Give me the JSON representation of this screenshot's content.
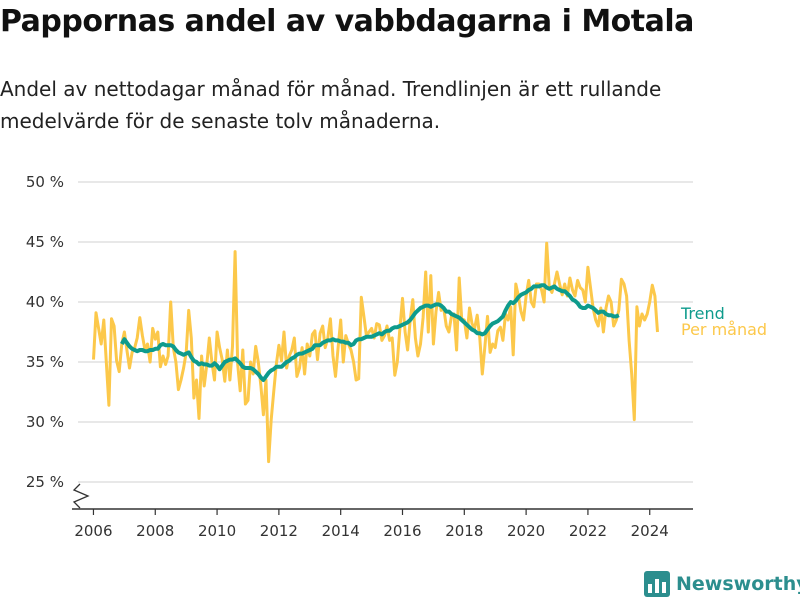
{
  "title": "Pappornas andel av vabbdagarna i Motala",
  "subtitle": "Andel av nettodagar månad för månad. Trendlinjen är ett rullande medelvärde för de senaste tolv månaderna.",
  "brand": {
    "name": "Newsworthy",
    "logo_icon": "newsworthy-logo-icon"
  },
  "colors": {
    "trend": "#0e9b8c",
    "monthly": "#fcc84a",
    "grid": "#d9d9d9",
    "axis": "#333333"
  },
  "chart_data": {
    "type": "line",
    "xlim": [
      2005.5,
      2025.4
    ],
    "ylim": [
      25,
      50
    ],
    "y_break_at_bottom": true,
    "grid": "horizontal",
    "x_ticks": [
      {
        "value": 2006,
        "label": "2006"
      },
      {
        "value": 2008,
        "label": "2008"
      },
      {
        "value": 2010,
        "label": "2010"
      },
      {
        "value": 2012,
        "label": "2012"
      },
      {
        "value": 2014,
        "label": "2014"
      },
      {
        "value": 2016,
        "label": "2016"
      },
      {
        "value": 2018,
        "label": "2018"
      },
      {
        "value": 2020,
        "label": "2020"
      },
      {
        "value": 2022,
        "label": "2022"
      },
      {
        "value": 2024,
        "label": "2024"
      }
    ],
    "y_ticks": [
      {
        "value": 25,
        "label": "25 %"
      },
      {
        "value": 30,
        "label": "30 %"
      },
      {
        "value": 35,
        "label": "35 %"
      },
      {
        "value": 40,
        "label": "40 %"
      },
      {
        "value": 45,
        "label": "45 %"
      },
      {
        "value": 50,
        "label": "50 %"
      }
    ],
    "series": [
      {
        "name": "Per månad",
        "color": "#fcc84a",
        "start": "2006-01",
        "values": [
          35.2,
          39.1,
          37.8,
          36.5,
          38.5,
          35.0,
          31.4,
          38.6,
          38.0,
          35.1,
          34.2,
          36.5,
          37.5,
          36.0,
          34.5,
          35.8,
          36.2,
          37.0,
          38.7,
          37.2,
          36.0,
          36.5,
          35.0,
          37.8,
          36.9,
          37.5,
          34.6,
          35.5,
          34.8,
          35.5,
          40.0,
          36.2,
          35.0,
          32.7,
          33.5,
          34.5,
          35.8,
          39.3,
          37.0,
          32.0,
          33.5,
          30.3,
          35.5,
          33.0,
          34.8,
          37.0,
          35.0,
          33.5,
          37.5,
          36.2,
          35.2,
          33.4,
          36.0,
          33.5,
          36.3,
          44.2,
          34.8,
          32.6,
          36.0,
          31.5,
          31.8,
          35.0,
          34.0,
          36.3,
          35.0,
          33.0,
          30.6,
          33.5,
          26.7,
          30.2,
          32.5,
          34.8,
          36.4,
          35.1,
          37.5,
          34.5,
          35.5,
          36.0,
          37.0,
          33.8,
          34.5,
          36.2,
          34.0,
          36.5,
          35.5,
          37.3,
          37.6,
          35.2,
          37.4,
          38.0,
          36.2,
          37.0,
          38.6,
          35.5,
          33.8,
          36.2,
          38.5,
          35.0,
          37.2,
          36.5,
          36.0,
          35.0,
          33.5,
          33.6,
          40.4,
          38.8,
          37.2,
          37.5,
          37.8,
          37.0,
          38.2,
          38.1,
          36.8,
          37.2,
          38.0,
          36.8,
          37.0,
          33.9,
          35.0,
          37.8,
          40.3,
          37.5,
          36.0,
          38.5,
          40.2,
          37.0,
          35.5,
          36.5,
          38.7,
          42.5,
          37.5,
          42.2,
          36.5,
          39.2,
          40.8,
          39.3,
          39.5,
          38.0,
          37.5,
          38.8,
          39.0,
          36.0,
          42.0,
          38.6,
          38.5,
          37.0,
          39.5,
          38.2,
          37.8,
          38.9,
          37.0,
          34.0,
          36.3,
          38.8,
          35.8,
          36.5,
          36.2,
          37.6,
          37.9,
          36.8,
          39.0,
          38.5,
          39.6,
          35.6,
          41.5,
          40.5,
          39.2,
          38.5,
          40.5,
          41.8,
          40.0,
          39.6,
          41.5,
          41.5,
          41.0,
          40.0,
          44.9,
          41.2,
          40.8,
          41.5,
          42.5,
          41.5,
          40.6,
          41.5,
          40.5,
          42.0,
          41.0,
          40.5,
          41.8,
          41.2,
          41.0,
          40.0,
          42.9,
          41.2,
          39.5,
          38.5,
          38.0,
          39.5,
          37.5,
          39.5,
          40.5,
          40.0,
          38.0,
          38.5,
          39.3,
          41.9,
          41.5,
          40.5,
          36.8,
          34.0,
          30.2,
          39.6,
          38.0,
          39.0,
          38.5,
          39.0,
          40.0,
          41.4,
          40.5,
          37.5
        ]
      },
      {
        "name": "Trend",
        "color": "#0e9b8c",
        "start": "2006-12",
        "values": [
          36.5,
          36.9,
          36.6,
          36.3,
          36.1,
          36.0,
          35.9,
          36.0,
          36.0,
          35.9,
          35.9,
          36.0,
          36.0,
          36.1,
          36.1,
          36.4,
          36.5,
          36.4,
          36.4,
          36.4,
          36.3,
          36.0,
          35.8,
          35.7,
          35.6,
          35.7,
          35.8,
          35.4,
          35.1,
          35.0,
          34.8,
          34.9,
          34.8,
          34.8,
          34.7,
          34.7,
          34.9,
          34.7,
          34.4,
          34.7,
          35.0,
          35.1,
          35.2,
          35.2,
          35.3,
          35.1,
          34.9,
          34.6,
          34.5,
          34.5,
          34.5,
          34.4,
          34.2,
          34.0,
          33.7,
          33.5,
          33.8,
          34.1,
          34.3,
          34.4,
          34.6,
          34.6,
          34.6,
          34.8,
          35.0,
          35.1,
          35.3,
          35.4,
          35.6,
          35.7,
          35.7,
          35.8,
          35.9,
          36.0,
          36.1,
          36.4,
          36.4,
          36.4,
          36.6,
          36.7,
          36.8,
          36.8,
          36.9,
          36.8,
          36.8,
          36.7,
          36.7,
          36.6,
          36.6,
          36.4,
          36.5,
          36.8,
          36.9,
          36.9,
          37.0,
          37.1,
          37.1,
          37.1,
          37.2,
          37.3,
          37.4,
          37.3,
          37.5,
          37.6,
          37.6,
          37.8,
          37.9,
          37.9,
          38.0,
          38.1,
          38.2,
          38.3,
          38.5,
          38.8,
          39.1,
          39.3,
          39.5,
          39.6,
          39.7,
          39.7,
          39.6,
          39.7,
          39.8,
          39.8,
          39.7,
          39.5,
          39.2,
          39.2,
          39.0,
          38.9,
          38.8,
          38.7,
          38.5,
          38.3,
          38.1,
          37.9,
          37.7,
          37.6,
          37.4,
          37.4,
          37.3,
          37.4,
          37.7,
          38.0,
          38.2,
          38.3,
          38.4,
          38.6,
          38.8,
          39.3,
          39.7,
          40.0,
          39.9,
          40.1,
          40.4,
          40.6,
          40.7,
          40.8,
          41.0,
          41.1,
          41.3,
          41.3,
          41.3,
          41.4,
          41.4,
          41.2,
          41.1,
          41.2,
          41.3,
          41.1,
          41.0,
          40.9,
          40.9,
          40.7,
          40.5,
          40.2,
          40.1,
          39.9,
          39.6,
          39.5,
          39.5,
          39.7,
          39.6,
          39.5,
          39.3,
          39.1,
          39.2,
          39.2,
          39.0,
          38.9,
          38.9,
          38.8,
          38.8,
          38.9
        ]
      }
    ],
    "legend": [
      {
        "label": "Trend",
        "color": "#0e9b8c"
      },
      {
        "label": "Per månad",
        "color": "#fcc84a"
      }
    ],
    "legend_placement": "right, at the end of the lines"
  }
}
